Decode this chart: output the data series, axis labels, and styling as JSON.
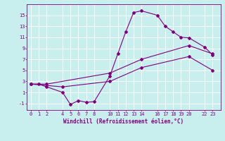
{
  "xlabel": "Windchill (Refroidissement éolien,°C)",
  "background_color": "#c8eeee",
  "line_color": "#800080",
  "grid_color": "#ffffff",
  "xticks": [
    0,
    1,
    2,
    4,
    5,
    6,
    7,
    8,
    10,
    11,
    12,
    13,
    14,
    16,
    17,
    18,
    19,
    20,
    22,
    23
  ],
  "yticks": [
    -1,
    1,
    3,
    5,
    7,
    9,
    11,
    13,
    15
  ],
  "xlim": [
    -0.5,
    24.0
  ],
  "ylim": [
    -2.2,
    17.0
  ],
  "line1_x": [
    0,
    1,
    2,
    4,
    5,
    6,
    7,
    8,
    10,
    11,
    12,
    13,
    14,
    16,
    17,
    18,
    19,
    20,
    22,
    23
  ],
  "line1_y": [
    2.5,
    2.5,
    2.0,
    1.0,
    -1.2,
    -0.5,
    -0.8,
    -0.7,
    4.0,
    8.0,
    12.0,
    15.5,
    15.8,
    15.0,
    13.0,
    12.0,
    11.0,
    10.9,
    9.2,
    7.8
  ],
  "line2_x": [
    0,
    2,
    10,
    14,
    20,
    23
  ],
  "line2_y": [
    2.5,
    2.5,
    4.5,
    7.0,
    9.5,
    8.0
  ],
  "line3_x": [
    0,
    4,
    10,
    14,
    20,
    23
  ],
  "line3_y": [
    2.5,
    2.0,
    3.0,
    5.5,
    7.5,
    5.0
  ],
  "tick_fontsize": 5.0,
  "xlabel_fontsize": 5.5,
  "marker_size": 2.0,
  "linewidth": 0.8
}
